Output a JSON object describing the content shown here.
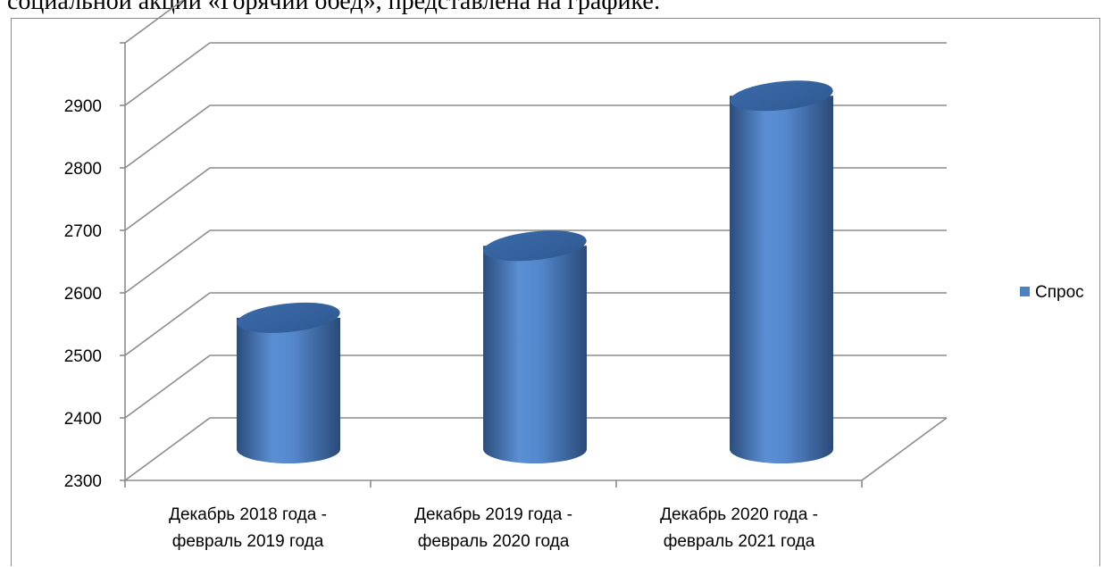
{
  "caption": "социальной акции «Горячий обед», представлена на графике:",
  "chart_data": {
    "type": "bar",
    "style": "3d-cylinder",
    "categories": [
      [
        "Декабрь 2018 года -",
        "февраль 2019 года"
      ],
      [
        "Декабрь 2019 года -",
        "февраль 2020 года"
      ],
      [
        "Декабрь 2020 года -",
        "февраль 2021 года"
      ]
    ],
    "series": [
      {
        "name": "Спрос",
        "values": [
          2510,
          2630,
          2880
        ],
        "color": "#4f81bd"
      }
    ],
    "y_ticks": [
      "2300",
      "2400",
      "2500",
      "2600",
      "2700",
      "2800",
      "2900"
    ],
    "ylim": [
      2300,
      3000
    ],
    "grid": true,
    "legend": "right"
  }
}
